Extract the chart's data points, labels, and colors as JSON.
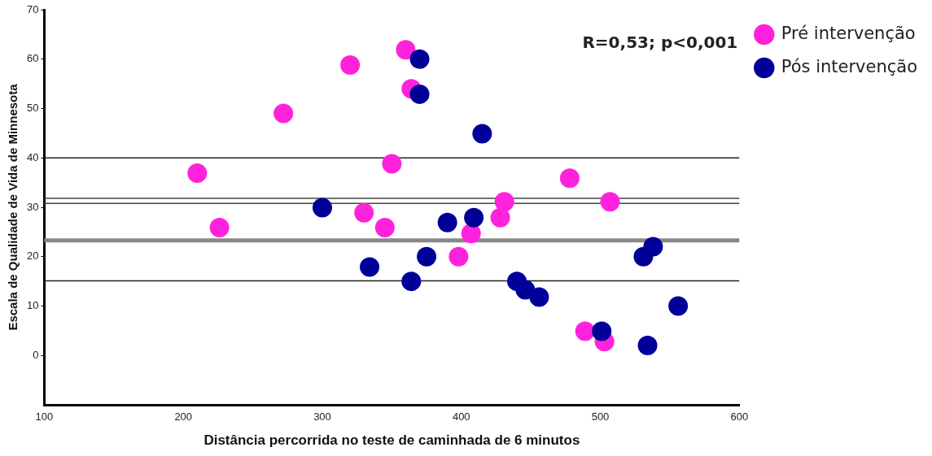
{
  "chart_data": {
    "type": "scatter",
    "xlabel": "Distância percorrida no teste de caminhada de 6 minutos",
    "ylabel": "Escala de Qualidade de Vida de Minnesota",
    "annotations": [
      "R=0,53; p<0,001"
    ],
    "xlim": [
      100,
      600
    ],
    "xticks": [
      100,
      200,
      300,
      400,
      500,
      600
    ],
    "ylim": [
      -10,
      70
    ],
    "yticks": [
      0,
      10,
      20,
      30,
      40,
      50,
      60,
      70
    ],
    "grid": false,
    "legend": "right",
    "marker": "circle",
    "ref_lines": [
      {
        "axis": "y",
        "value": 40,
        "color": "#222222"
      },
      {
        "axis": "y",
        "value": 31.8,
        "color": "#444444"
      },
      {
        "axis": "y",
        "value": 30.8,
        "color": "#444444"
      },
      {
        "axis": "y",
        "value": 23.3,
        "color": "#888888"
      },
      {
        "axis": "y",
        "value": 15.1,
        "color": "#222222"
      }
    ],
    "series": [
      {
        "name": "Pré intervenção",
        "color": "#ff22dd",
        "x": [
          210,
          226,
          272,
          320,
          350,
          330,
          345,
          360,
          364,
          478,
          431,
          507,
          428,
          407,
          398,
          489,
          503
        ],
        "values": [
          36.9,
          25.9,
          49,
          58.8,
          38.8,
          28.9,
          25.9,
          61.9,
          54,
          35.9,
          31.1,
          31.1,
          27.9,
          24.7,
          20,
          4.9,
          2.8
        ]
      },
      {
        "name": "Pós intervenção",
        "color": "#000099",
        "x": [
          300,
          334,
          370,
          370,
          415,
          390,
          409,
          375,
          364,
          440,
          446,
          456,
          531,
          538,
          556,
          501,
          534
        ],
        "values": [
          29.9,
          17.9,
          60,
          52.9,
          44.9,
          26.9,
          27.9,
          20,
          15,
          15,
          13.3,
          11.8,
          20,
          22,
          10,
          4.9,
          2
        ]
      }
    ]
  }
}
